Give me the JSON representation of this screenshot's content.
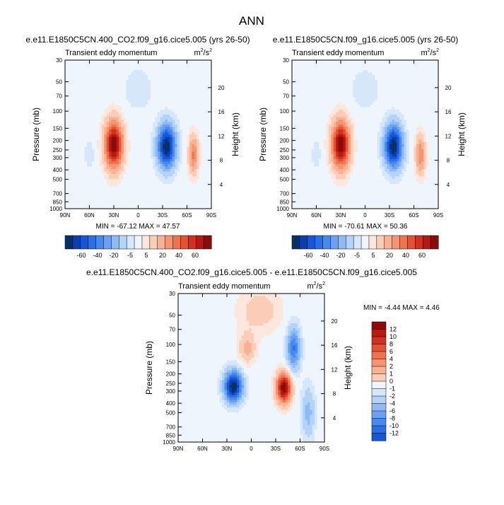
{
  "page_title": "ANN",
  "colors": {
    "neg_scale": [
      "#08306b",
      "#0b3fb0",
      "#1657d9",
      "#2a6fe8",
      "#4889ee",
      "#6aa2f1",
      "#8ebbf4",
      "#b3d3f7",
      "#d6e7fa"
    ],
    "zero": "#eef5fc",
    "pos_scale": [
      "#fde7dc",
      "#fbcdb6",
      "#f8b293",
      "#f49470",
      "#ee744f",
      "#e55232",
      "#d43020",
      "#b61812",
      "#8b0a0a"
    ]
  },
  "chart_data": [
    {
      "type": "heatmap",
      "title": "e.e11.E1850C5CN.400_CO2.f09_g16.cice5.005 (yrs 26-50)",
      "left_string": "Transient eddy momentum",
      "units_base": "m",
      "units_sup": "2",
      "units_slash": "/s",
      "units_sup2": "2",
      "ylabel": "Pressure (mb)",
      "ylabel_right": "Height (km)",
      "x_ticks": [
        "90N",
        "60N",
        "30N",
        "0",
        "30S",
        "60S",
        "90S"
      ],
      "y_ticks": [
        "30",
        "50",
        "70",
        "100",
        "150",
        "200",
        "250",
        "300",
        "400",
        "500",
        "700",
        "850",
        "1000"
      ],
      "y_right_ticks": [
        "20",
        "16",
        "12",
        "8",
        "4"
      ],
      "y_range_mb": [
        1000,
        30
      ],
      "min_max_text": "MIN = -67.12   MAX = 47.57",
      "stats": {
        "min": -67.12,
        "max": 47.57
      },
      "features": [
        {
          "lat": -30,
          "p": 220,
          "amp": 47.57,
          "lat_width": 11,
          "p_width": 0.55
        },
        {
          "lat": 35,
          "p": 230,
          "amp": -67.12,
          "lat_width": 11,
          "p_width": 0.5
        },
        {
          "lat": 68,
          "p": 280,
          "amp": 22,
          "lat_width": 6,
          "p_width": 0.45
        },
        {
          "lat": -60,
          "p": 280,
          "amp": -8,
          "lat_width": 5,
          "p_width": 0.3
        },
        {
          "lat": 0,
          "p": 60,
          "amp": -6,
          "lat_width": 18,
          "p_width": 0.5
        }
      ],
      "colorbar_labels": [
        "-60",
        "-40",
        "-20",
        "-5",
        "5",
        "20",
        "40",
        "60"
      ]
    },
    {
      "type": "heatmap",
      "title": "e.e11.E1850C5CN.f09_g16.cice5.005 (yrs 26-50)",
      "left_string": "Transient eddy momentum",
      "units_base": "m",
      "units_sup": "2",
      "units_slash": "/s",
      "units_sup2": "2",
      "ylabel": "Pressure (mb)",
      "ylabel_right": "Height (km)",
      "x_ticks": [
        "90N",
        "60N",
        "30N",
        "0",
        "30S",
        "60S",
        "90S"
      ],
      "y_ticks": [
        "30",
        "50",
        "70",
        "100",
        "150",
        "200",
        "250",
        "300",
        "400",
        "500",
        "700",
        "850",
        "1000"
      ],
      "y_right_ticks": [
        "20",
        "16",
        "12",
        "8",
        "4"
      ],
      "y_range_mb": [
        1000,
        30
      ],
      "min_max_text": "MIN = -70.61   MAX = 50.36",
      "stats": {
        "min": -70.61,
        "max": 50.36
      },
      "features": [
        {
          "lat": -30,
          "p": 220,
          "amp": 50.36,
          "lat_width": 11,
          "p_width": 0.55
        },
        {
          "lat": 35,
          "p": 230,
          "amp": -70.61,
          "lat_width": 11,
          "p_width": 0.5
        },
        {
          "lat": 68,
          "p": 280,
          "amp": 22,
          "lat_width": 6,
          "p_width": 0.45
        },
        {
          "lat": -60,
          "p": 280,
          "amp": -8,
          "lat_width": 5,
          "p_width": 0.3
        },
        {
          "lat": 0,
          "p": 60,
          "amp": -6,
          "lat_width": 18,
          "p_width": 0.5
        }
      ],
      "colorbar_labels": [
        "-60",
        "-40",
        "-20",
        "-5",
        "5",
        "20",
        "40",
        "60"
      ]
    },
    {
      "type": "heatmap",
      "title": "e.e11.E1850C5CN.400_CO2.f09_g16.cice5.005 - e.e11.E1850C5CN.f09_g16.cice5.005",
      "left_string": "Transient eddy momentum",
      "units_base": "m",
      "units_sup": "2",
      "units_slash": "/s",
      "units_sup2": "2",
      "ylabel": "Pressure (mb)",
      "ylabel_right": "Height (km)",
      "x_ticks": [
        "90N",
        "60N",
        "30N",
        "0",
        "30S",
        "60S",
        "90S"
      ],
      "y_ticks": [
        "30",
        "50",
        "70",
        "100",
        "150",
        "200",
        "250",
        "300",
        "400",
        "500",
        "700",
        "850",
        "1000"
      ],
      "y_right_ticks": [
        "20",
        "16",
        "12",
        "8",
        "4"
      ],
      "y_range_mb": [
        1000,
        30
      ],
      "min_max_text": "MIN = -4.44   MAX =  4.46",
      "stats": {
        "min": -4.44,
        "max": 4.46
      },
      "features": [
        {
          "lat": -22,
          "p": 270,
          "amp": -4.44,
          "lat_width": 11,
          "p_width": 0.35
        },
        {
          "lat": 40,
          "p": 280,
          "amp": 4.46,
          "lat_width": 9,
          "p_width": 0.35
        },
        {
          "lat": 52,
          "p": 110,
          "amp": -2.5,
          "lat_width": 8,
          "p_width": 0.5
        },
        {
          "lat": -5,
          "p": 110,
          "amp": 1.2,
          "lat_width": 10,
          "p_width": 0.35
        },
        {
          "lat": 10,
          "p": 45,
          "amp": 0.8,
          "lat_width": 25,
          "p_width": 0.5
        },
        {
          "lat": 70,
          "p": 500,
          "amp": -1.2,
          "lat_width": 8,
          "p_width": 0.6
        }
      ],
      "colorbar_labels": [
        "12",
        "10",
        "8",
        "6",
        "4",
        "2",
        "1",
        "0",
        "-1",
        "-2",
        "-4",
        "-6",
        "-8",
        "-10",
        "-12"
      ]
    }
  ]
}
